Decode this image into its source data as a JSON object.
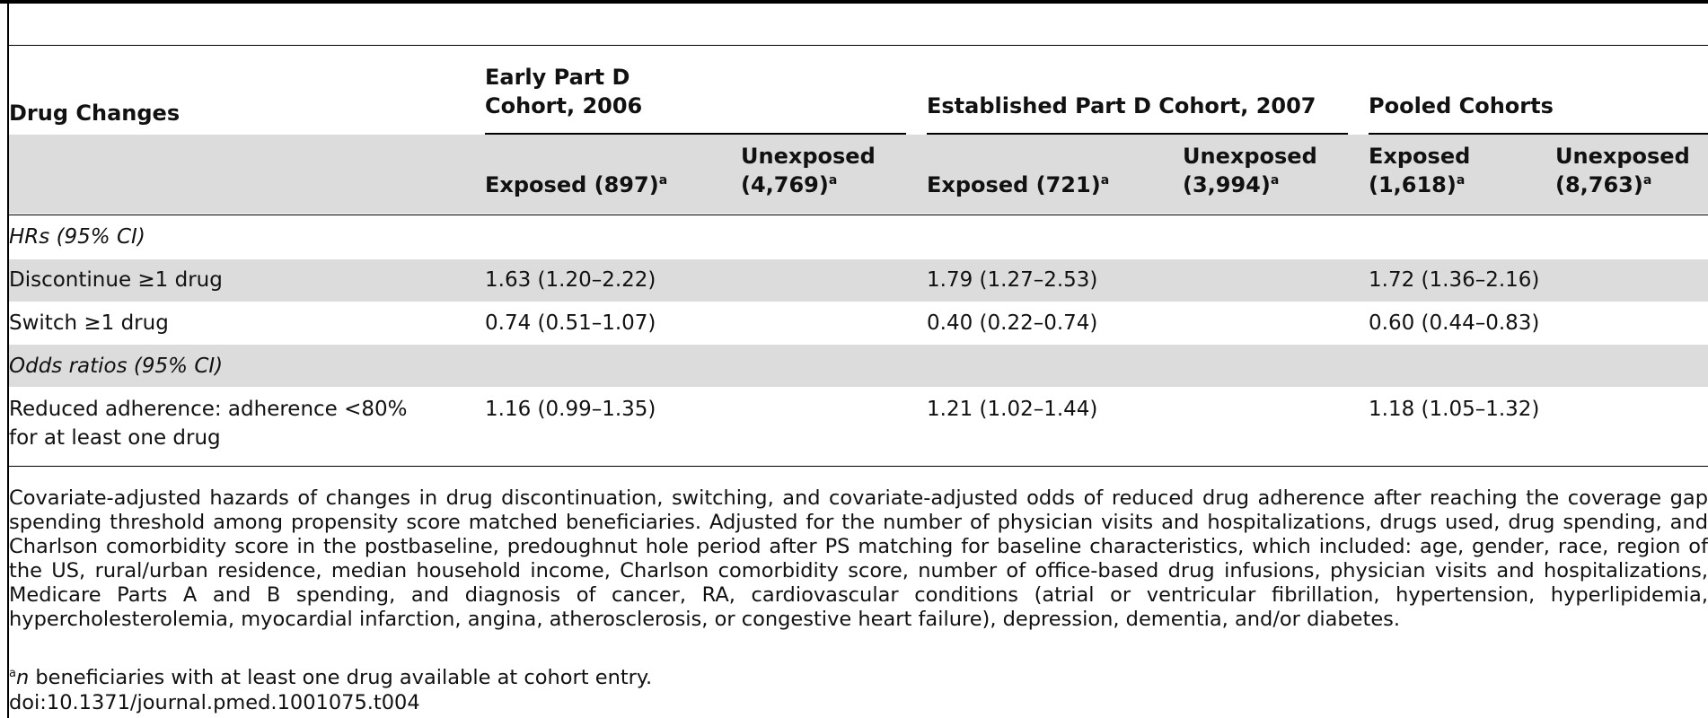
{
  "table": {
    "stub_header": "Drug Changes",
    "groups": [
      {
        "line1": "Early Part D",
        "line2": "Cohort, 2006"
      },
      {
        "label": "Established Part D Cohort, 2007"
      },
      {
        "label": "Pooled Cohorts"
      }
    ],
    "subheaders": [
      {
        "line1": "Exposed (897)",
        "mark": "a"
      },
      {
        "line1": "Unexposed",
        "line2": "(4,769)",
        "mark": "a"
      },
      {
        "line1": "Exposed (721)",
        "mark": "a"
      },
      {
        "line1": "Unexposed",
        "line2": "(3,994)",
        "mark": "a"
      },
      {
        "line1": "Exposed",
        "line2": "(1,618)",
        "mark": "a"
      },
      {
        "line1": "Unexposed",
        "line2": "(8,763)",
        "mark": "a"
      }
    ],
    "sections": [
      {
        "label": "HRs (95% CI)"
      },
      {
        "label": "Odds ratios (95% CI)"
      }
    ],
    "rows": [
      {
        "label": "Discontinue ≥1 drug",
        "values": [
          "1.63 (1.20–2.22)",
          "1.79 (1.27–2.53)",
          "1.72 (1.36–2.16)"
        ]
      },
      {
        "label": "Switch ≥1 drug",
        "values": [
          "0.74 (0.51–1.07)",
          "0.40 (0.22–0.74)",
          "0.60 (0.44–0.83)"
        ]
      },
      {
        "label_line1": "Reduced adherence: adherence <80%",
        "label_line2": "for at least one drug",
        "values": [
          "1.16 (0.99–1.35)",
          "1.21 (1.02–1.44)",
          "1.18 (1.05–1.32)"
        ]
      }
    ]
  },
  "notes": {
    "caption": "Covariate-adjusted hazards of changes in drug discontinuation, switching, and covariate-adjusted odds of reduced drug adherence after reaching the coverage gap spending threshold among propensity score matched beneficiaries. Adjusted for the number of physician visits and hospitalizations, drugs used, drug spending, and Charlson comorbidity score in the postbaseline, predoughnut hole period after PS matching for baseline characteristics, which included: age, gender, race, region of the US, rural/urban residence, median household income, Charlson comorbidity score, number of office-based drug infusions, physician visits and hospitalizations, Medicare Parts A and B spending, and diagnosis of cancer, RA, cardiovascular conditions (atrial or ventricular fibrillation, hypertension, hyperlipidemia, hypercholesterolemia, myocardial infarction, angina, atherosclerosis, or congestive heart failure), depression, dementia, and/or diabetes.",
    "footnote_mark": "a",
    "footnote_n": "n",
    "footnote_text": " beneficiaries with at least one drug available at cohort entry.",
    "doi": "doi:10.1371/journal.pmed.1001075.t004"
  }
}
